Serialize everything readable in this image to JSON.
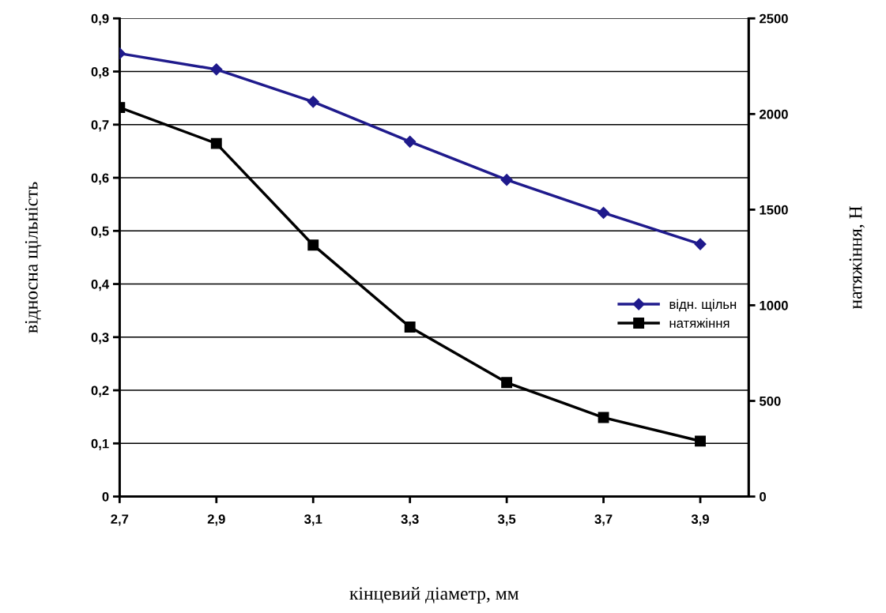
{
  "chart_data": {
    "type": "line",
    "xlabel": "кінцевий діаметр, мм",
    "ylabel": "відносна щільність",
    "y2label": "натяжіння, Н",
    "x": [
      2.7,
      2.9,
      3.1,
      3.3,
      3.5,
      3.7,
      3.9
    ],
    "series": [
      {
        "name": "відн. щільн",
        "color": "#1f1a8c",
        "marker": "diamond",
        "values": [
          0.834,
          0.804,
          0.743,
          0.668,
          0.596,
          0.534,
          0.475
        ]
      },
      {
        "name": "натяжіння",
        "color": "#000000",
        "marker": "square",
        "axis": "y2",
        "values": [
          2034,
          1846,
          1315,
          886,
          596,
          413,
          290
        ]
      }
    ],
    "xlim": [
      2.7,
      4.0
    ],
    "xticks": [
      {
        "value": 2.7,
        "label": "2,7"
      },
      {
        "value": 2.9,
        "label": "2,9"
      },
      {
        "value": 3.1,
        "label": "3,1"
      },
      {
        "value": 3.3,
        "label": "3,3"
      },
      {
        "value": 3.5,
        "label": "3,5"
      },
      {
        "value": 3.7,
        "label": "3,7"
      },
      {
        "value": 3.9,
        "label": "3,9"
      }
    ],
    "ylim": [
      0,
      0.9
    ],
    "yticks": [
      0,
      {
        "value": 0.1,
        "label": "0,1"
      },
      {
        "value": 0.2,
        "label": "0,2"
      },
      {
        "value": 0.3,
        "label": "0,3"
      },
      {
        "value": 0.4,
        "label": "0,4"
      },
      {
        "value": 0.5,
        "label": "0,5"
      },
      {
        "value": 0.6,
        "label": "0,6"
      },
      {
        "value": 0.7,
        "label": "0,7"
      },
      {
        "value": 0.8,
        "label": "0,8"
      },
      {
        "value": 0.9,
        "label": "0,9"
      }
    ],
    "y2lim": [
      0,
      2500
    ],
    "y2ticks": [
      0,
      500,
      1000,
      1500,
      2000,
      2500
    ],
    "grid": "y",
    "legend": "right",
    "line_style": "solid"
  }
}
